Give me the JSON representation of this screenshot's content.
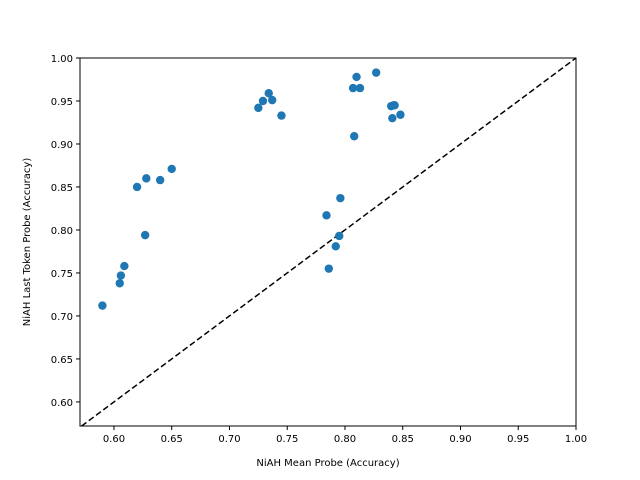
{
  "chart_data": {
    "type": "scatter",
    "x_label": "NiAH Mean Probe (Accuracy)",
    "y_label": "NiAH Last Token Probe (Accuracy)",
    "color": "#1f77b4",
    "xlim": [
      0.5706,
      1.0
    ],
    "ylim": [
      0.572,
      1.0
    ],
    "xticks": [
      {
        "value": 0.6,
        "label": "0.60"
      },
      {
        "value": 0.65,
        "label": "0.65"
      },
      {
        "value": 0.7,
        "label": "0.70"
      },
      {
        "value": 0.75,
        "label": "0.75"
      },
      {
        "value": 0.8,
        "label": "0.80"
      },
      {
        "value": 0.85,
        "label": "0.85"
      },
      {
        "value": 0.9,
        "label": "0.90"
      },
      {
        "value": 0.95,
        "label": "0.95"
      },
      {
        "value": 1.0,
        "label": "1.00"
      }
    ],
    "yticks": [
      {
        "value": 0.6,
        "label": "0.60"
      },
      {
        "value": 0.65,
        "label": "0.65"
      },
      {
        "value": 0.7,
        "label": "0.70"
      },
      {
        "value": 0.75,
        "label": "0.75"
      },
      {
        "value": 0.8,
        "label": "0.80"
      },
      {
        "value": 0.85,
        "label": "0.85"
      },
      {
        "value": 0.9,
        "label": "0.90"
      },
      {
        "value": 0.95,
        "label": "0.95"
      },
      {
        "value": 1.0,
        "label": "1.00"
      }
    ],
    "x": [
      0.59,
      0.605,
      0.606,
      0.609,
      0.62,
      0.628,
      0.627,
      0.64,
      0.65,
      0.725,
      0.729,
      0.734,
      0.737,
      0.745,
      0.784,
      0.786,
      0.792,
      0.795,
      0.796,
      0.807,
      0.808,
      0.81,
      0.813,
      0.827,
      0.84,
      0.842,
      0.841,
      0.843,
      0.848
    ],
    "values": [
      0.712,
      0.738,
      0.747,
      0.758,
      0.85,
      0.86,
      0.794,
      0.858,
      0.871,
      0.942,
      0.95,
      0.959,
      0.951,
      0.933,
      0.817,
      0.755,
      0.781,
      0.793,
      0.837,
      0.965,
      0.909,
      0.978,
      0.965,
      0.983,
      0.944,
      0.945,
      0.93,
      0.945,
      0.934
    ],
    "diagonal": true
  }
}
